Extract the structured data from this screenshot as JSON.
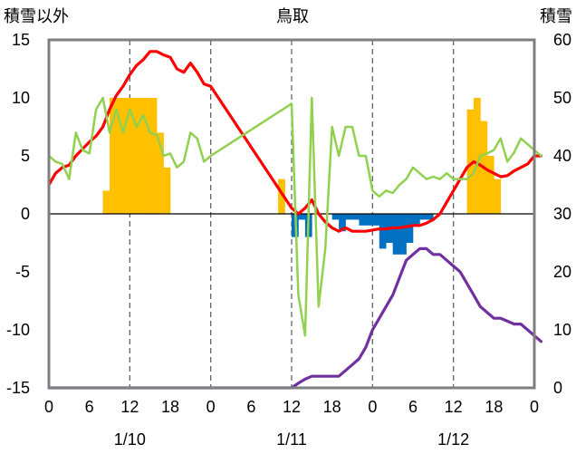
{
  "chart_data": {
    "type": "bar+line",
    "title": "鳥取",
    "ylabel_left": "積雪以外",
    "ylabel_right": "積雪",
    "ylim_left": [
      -15,
      15
    ],
    "ylim_right": [
      0,
      60
    ],
    "yticks_left": [
      "15",
      "10",
      "5",
      "0",
      "-5",
      "-10",
      "-15"
    ],
    "yticks_right": [
      "60",
      "50",
      "40",
      "30",
      "20",
      "10",
      "0"
    ],
    "x_hour_labels": [
      "0",
      "6",
      "12",
      "18",
      "0",
      "6",
      "12",
      "18",
      "0",
      "6",
      "12",
      "18",
      "0"
    ],
    "date_labels": [
      "1/10",
      "1/11",
      "1/12"
    ],
    "grid": "dashed vertical lines at 12h and at day boundaries inside the plot",
    "colors": {
      "frame": "#7f7f7f",
      "zero_line": "#000000",
      "grid": "#595959",
      "positive_bar": "#ffc000",
      "negative_bar": "#0070c0",
      "red_line": "#ff0000",
      "green_line": "#92d050",
      "purple_line": "#7030a0"
    },
    "series": [
      {
        "type": "bar",
        "color": "#ffc000",
        "axis": "left",
        "points": [
          [
            8,
            2
          ],
          [
            9,
            10
          ],
          [
            10,
            10
          ],
          [
            11,
            10
          ],
          [
            12,
            10
          ],
          [
            13,
            10
          ],
          [
            14,
            10
          ],
          [
            15,
            10
          ],
          [
            16,
            7
          ],
          [
            17,
            4
          ],
          [
            34,
            3
          ],
          [
            62,
            9
          ],
          [
            63,
            10
          ],
          [
            64,
            8
          ],
          [
            65,
            5
          ],
          [
            66,
            3
          ]
        ]
      },
      {
        "type": "bar",
        "color": "#0070c0",
        "axis": "left",
        "points": [
          [
            36,
            -2
          ],
          [
            37,
            -0.5
          ],
          [
            38,
            -2
          ],
          [
            42,
            -0.5
          ],
          [
            43,
            -1.5
          ],
          [
            44,
            -0.5
          ],
          [
            45,
            -0.5
          ],
          [
            46,
            -1
          ],
          [
            47,
            -1
          ],
          [
            48,
            -1
          ],
          [
            49,
            -3
          ],
          [
            50,
            -2.5
          ],
          [
            51,
            -3.5
          ],
          [
            52,
            -3.5
          ],
          [
            53,
            -2.5
          ],
          [
            54,
            -1
          ],
          [
            55,
            -0.5
          ],
          [
            56,
            -0.5
          ]
        ]
      },
      {
        "type": "line",
        "color": "#ff0000",
        "axis": "left",
        "points": [
          [
            0,
            2.5
          ],
          [
            1,
            3.5
          ],
          [
            2,
            4
          ],
          [
            3,
            4.2
          ],
          [
            4,
            5
          ],
          [
            5,
            5.6
          ],
          [
            6,
            6.2
          ],
          [
            7,
            6.7
          ],
          [
            8,
            7.5
          ],
          [
            9,
            9
          ],
          [
            10,
            10.2
          ],
          [
            11,
            11
          ],
          [
            12,
            12
          ],
          [
            13,
            12.8
          ],
          [
            14,
            13.3
          ],
          [
            15,
            14
          ],
          [
            16,
            14
          ],
          [
            17,
            13.7
          ],
          [
            18,
            13.5
          ],
          [
            19,
            12.5
          ],
          [
            20,
            12.2
          ],
          [
            21,
            13
          ],
          [
            22,
            12.2
          ],
          [
            23,
            11.2
          ],
          [
            24,
            11
          ],
          [
            36,
            0.5
          ],
          [
            37,
            0
          ],
          [
            38,
            0.5
          ],
          [
            39,
            1.2
          ],
          [
            40,
            0
          ],
          [
            41,
            -0.7
          ],
          [
            42,
            -1.2
          ],
          [
            43,
            -1.5
          ],
          [
            44,
            -1.2
          ],
          [
            45,
            -1.5
          ],
          [
            46,
            -1.5
          ],
          [
            47,
            -1.5
          ],
          [
            48,
            -1.4
          ],
          [
            49,
            -1.3
          ],
          [
            50,
            -1.3
          ],
          [
            51,
            -1.2
          ],
          [
            52,
            -1.2
          ],
          [
            53,
            -1.1
          ],
          [
            54,
            -1
          ],
          [
            55,
            -1
          ],
          [
            56,
            -0.8
          ],
          [
            57,
            -0.5
          ],
          [
            58,
            0
          ],
          [
            59,
            1
          ],
          [
            60,
            2
          ],
          [
            61,
            3
          ],
          [
            62,
            4
          ],
          [
            63,
            4.5
          ],
          [
            64,
            4.2
          ],
          [
            65,
            3.8
          ],
          [
            66,
            3.5
          ],
          [
            67,
            3.2
          ],
          [
            68,
            3.3
          ],
          [
            69,
            3.7
          ],
          [
            70,
            4
          ],
          [
            71,
            4.3
          ],
          [
            72,
            5
          ],
          [
            73,
            5
          ]
        ]
      },
      {
        "type": "line",
        "color": "#92d050",
        "axis": "left",
        "points": [
          [
            0,
            5
          ],
          [
            1,
            4.5
          ],
          [
            2,
            4.3
          ],
          [
            3,
            3
          ],
          [
            4,
            7
          ],
          [
            5,
            5.5
          ],
          [
            6,
            5.2
          ],
          [
            7,
            9
          ],
          [
            8,
            10
          ],
          [
            9,
            7
          ],
          [
            10,
            9
          ],
          [
            11,
            7
          ],
          [
            12,
            9
          ],
          [
            13,
            7.5
          ],
          [
            14,
            8.5
          ],
          [
            15,
            7
          ],
          [
            16,
            6.8
          ],
          [
            17,
            5
          ],
          [
            18,
            5.2
          ],
          [
            19,
            4
          ],
          [
            20,
            4.5
          ],
          [
            21,
            7
          ],
          [
            22,
            6.5
          ],
          [
            23,
            4.5
          ],
          [
            24,
            5
          ],
          [
            36,
            9.5
          ],
          [
            37,
            -7
          ],
          [
            38,
            -10.5
          ],
          [
            39,
            10
          ],
          [
            40,
            -8
          ],
          [
            41,
            -3
          ],
          [
            42,
            7.5
          ],
          [
            43,
            5
          ],
          [
            44,
            7.5
          ],
          [
            45,
            7.5
          ],
          [
            46,
            5
          ],
          [
            47,
            5
          ],
          [
            48,
            2
          ],
          [
            49,
            1.5
          ],
          [
            50,
            2
          ],
          [
            51,
            1.8
          ],
          [
            52,
            2.5
          ],
          [
            53,
            3
          ],
          [
            54,
            4
          ],
          [
            55,
            3.5
          ],
          [
            56,
            3
          ],
          [
            57,
            3.2
          ],
          [
            58,
            3
          ],
          [
            59,
            3.5
          ],
          [
            60,
            3
          ],
          [
            61,
            3
          ],
          [
            62,
            3
          ],
          [
            63,
            3.5
          ],
          [
            64,
            5
          ],
          [
            65,
            5.2
          ],
          [
            66,
            5.5
          ],
          [
            67,
            6.5
          ],
          [
            68,
            4.5
          ],
          [
            69,
            5.3
          ],
          [
            70,
            6.5
          ],
          [
            71,
            6
          ],
          [
            72,
            5.5
          ],
          [
            73,
            5
          ]
        ]
      },
      {
        "type": "line",
        "color": "#7030a0",
        "axis": "right",
        "points": [
          [
            0,
            0
          ],
          [
            24,
            0
          ],
          [
            36,
            0
          ],
          [
            37,
            0.8
          ],
          [
            38,
            1.5
          ],
          [
            39,
            2
          ],
          [
            40,
            2
          ],
          [
            41,
            2
          ],
          [
            42,
            2
          ],
          [
            43,
            2
          ],
          [
            44,
            3
          ],
          [
            45,
            4
          ],
          [
            46,
            5
          ],
          [
            47,
            7
          ],
          [
            48,
            10
          ],
          [
            49,
            12
          ],
          [
            50,
            14
          ],
          [
            51,
            16
          ],
          [
            52,
            19
          ],
          [
            53,
            22
          ],
          [
            54,
            23
          ],
          [
            55,
            24
          ],
          [
            56,
            24
          ],
          [
            57,
            23
          ],
          [
            58,
            23
          ],
          [
            59,
            22
          ],
          [
            60,
            21
          ],
          [
            61,
            20
          ],
          [
            62,
            18
          ],
          [
            63,
            16
          ],
          [
            64,
            14
          ],
          [
            65,
            13
          ],
          [
            66,
            12
          ],
          [
            67,
            12
          ],
          [
            68,
            11.5
          ],
          [
            69,
            11
          ],
          [
            70,
            11
          ],
          [
            71,
            10
          ],
          [
            72,
            9
          ],
          [
            73,
            8
          ]
        ]
      }
    ]
  }
}
